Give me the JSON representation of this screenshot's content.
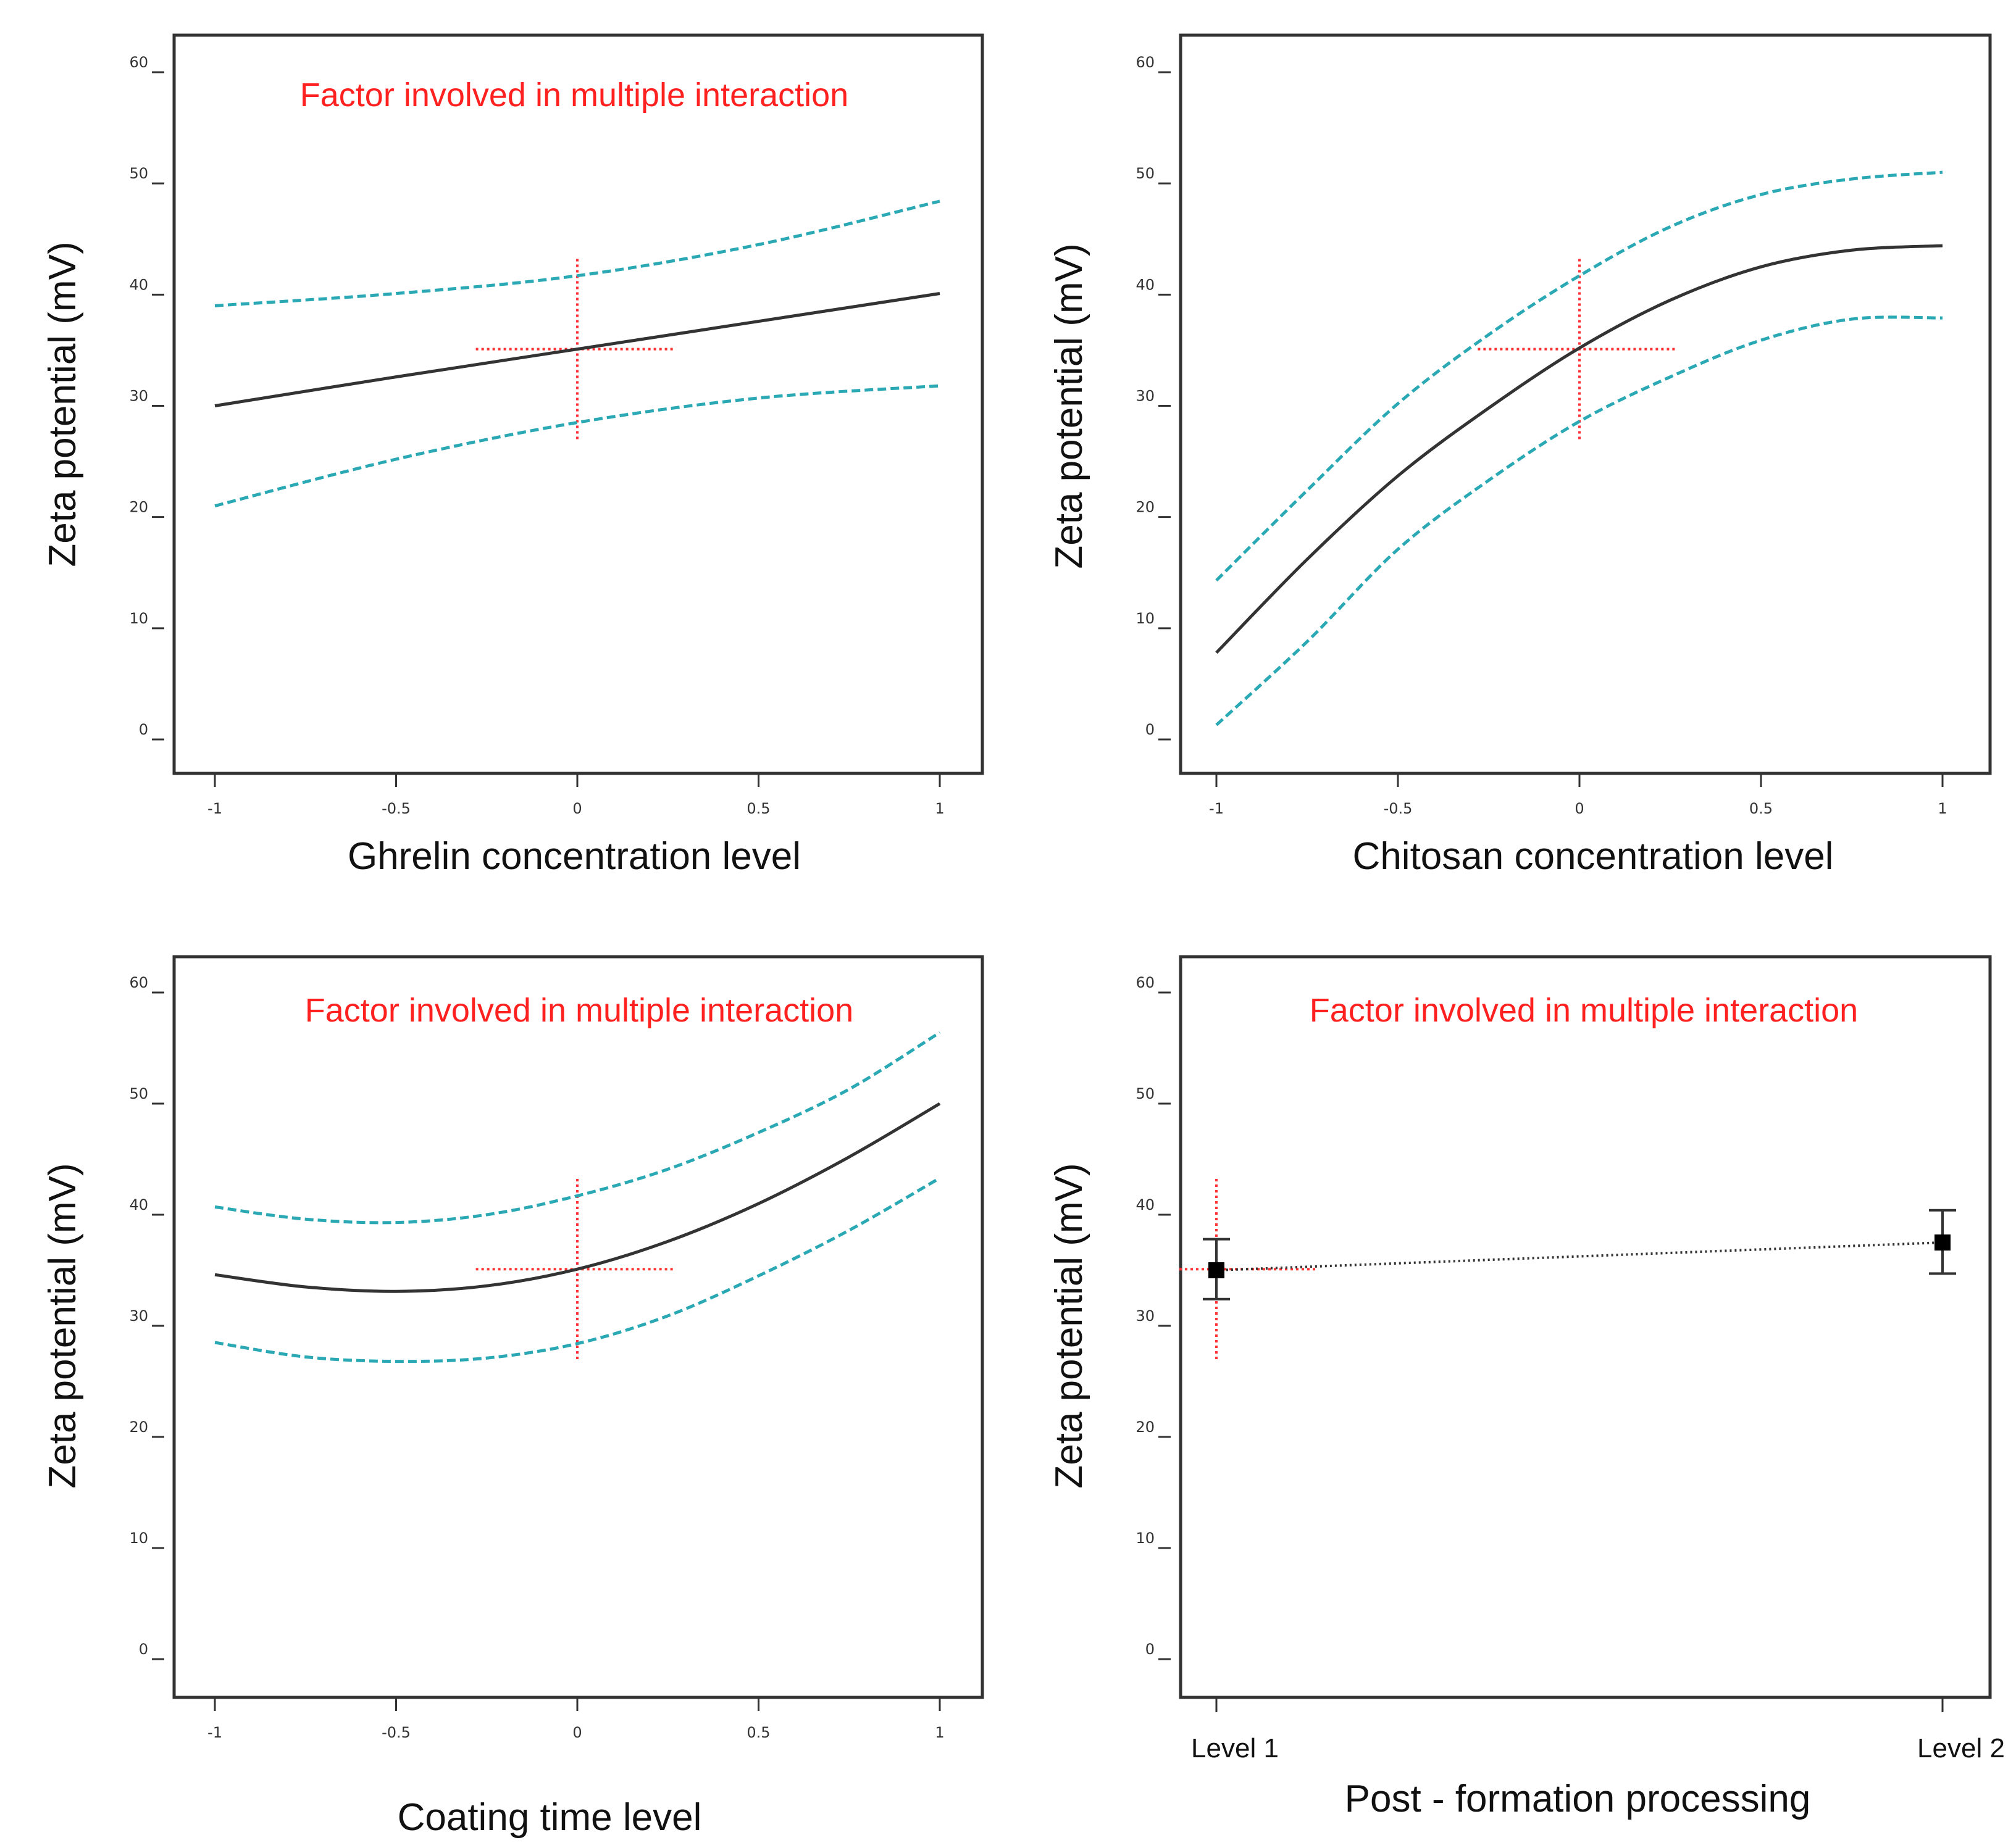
{
  "colors": {
    "fit": "#333333",
    "ci": "#2aa9b4",
    "reference": "#ff3333",
    "note": "#ff2020",
    "point": "#000000"
  },
  "chart_data": [
    {
      "type": "line",
      "xlabel": "Ghrelin concentration level",
      "ylabel": "Zeta potential (mV)",
      "annotation": "Factor involved in multiple interaction",
      "xlim": [
        -1,
        1
      ],
      "ylim": [
        0,
        60
      ],
      "x_ticks": [
        "-1",
        "-0.5",
        "0",
        "0.5",
        "1"
      ],
      "y_ticks": [
        "0",
        "10",
        "20",
        "30",
        "40",
        "50",
        "60"
      ],
      "grid": false,
      "x": [
        -1,
        -0.5,
        0,
        0.5,
        1
      ],
      "series": [
        {
          "role": "fit",
          "values": [
            30.0,
            32.6,
            35.1,
            37.6,
            40.1
          ]
        },
        {
          "role": "upper",
          "values": [
            39.0,
            40.1,
            41.7,
            44.5,
            48.4
          ]
        },
        {
          "role": "lower",
          "values": [
            21.0,
            25.2,
            28.5,
            30.7,
            31.8
          ]
        }
      ],
      "reference_cross": {
        "x": 0,
        "y": 35.1,
        "x_span": [
          -0.28,
          0.27
        ],
        "y_span": [
          27.0,
          43.3
        ]
      }
    },
    {
      "type": "line",
      "xlabel": "Chitosan concentration level",
      "ylabel": "Zeta potential (mV)",
      "annotation": "",
      "xlim": [
        -1,
        1
      ],
      "ylim": [
        0,
        60
      ],
      "x_ticks": [
        "-1",
        "-0.5",
        "0",
        "0.5",
        "1"
      ],
      "y_ticks": [
        "0",
        "10",
        "20",
        "30",
        "40",
        "50",
        "60"
      ],
      "grid": false,
      "x": [
        -1,
        -0.75,
        -0.5,
        -0.25,
        0,
        0.25,
        0.5,
        0.75,
        1
      ],
      "series": [
        {
          "role": "fit",
          "values": [
            7.8,
            16.2,
            23.7,
            29.8,
            35.2,
            39.5,
            42.5,
            44.0,
            44.4
          ]
        },
        {
          "role": "upper",
          "values": [
            14.3,
            22.4,
            30.2,
            36.4,
            41.7,
            46.1,
            49.0,
            50.4,
            51.0
          ]
        },
        {
          "role": "lower",
          "values": [
            1.3,
            8.8,
            17.1,
            23.3,
            28.6,
            32.6,
            35.9,
            37.8,
            37.9
          ]
        }
      ],
      "reference_cross": {
        "x": 0,
        "y": 35.1,
        "x_span": [
          -0.28,
          0.27
        ],
        "y_span": [
          27.0,
          43.3
        ]
      }
    },
    {
      "type": "line",
      "xlabel": "Coating time level",
      "ylabel": "Zeta potential (mV)",
      "annotation": "Factor involved in multiple interaction",
      "xlim": [
        -1,
        1
      ],
      "ylim": [
        0,
        60
      ],
      "x_ticks": [
        "-1",
        "-0.5",
        "0",
        "0.5",
        "1"
      ],
      "y_ticks": [
        "0",
        "10",
        "20",
        "30",
        "40",
        "50",
        "60"
      ],
      "grid": false,
      "x": [
        -1,
        -0.75,
        -0.5,
        -0.25,
        0,
        0.25,
        0.5,
        0.75,
        1
      ],
      "series": [
        {
          "role": "fit",
          "values": [
            34.6,
            33.5,
            33.1,
            33.6,
            35.1,
            37.6,
            41.0,
            45.2,
            50.0
          ]
        },
        {
          "role": "upper",
          "values": [
            40.7,
            39.6,
            39.3,
            40.0,
            41.7,
            44.1,
            47.4,
            51.3,
            56.4
          ]
        },
        {
          "role": "lower",
          "values": [
            28.5,
            27.2,
            26.8,
            27.1,
            28.4,
            30.9,
            34.5,
            38.6,
            43.3
          ]
        }
      ],
      "reference_cross": {
        "x": 0,
        "y": 35.1,
        "x_span": [
          -0.28,
          0.27
        ],
        "y_span": [
          27.0,
          43.3
        ]
      }
    },
    {
      "type": "scatter",
      "xlabel": "Post - formation processing",
      "ylabel": "Zeta potential (mV)",
      "annotation": "Factor involved in multiple interaction",
      "categories": [
        "Level 1",
        "Level 2"
      ],
      "ylim": [
        0,
        60
      ],
      "y_ticks": [
        "0",
        "10",
        "20",
        "30",
        "40",
        "50",
        "60"
      ],
      "grid": false,
      "values": [
        35.0,
        37.5
      ],
      "error_low": [
        32.4,
        34.7
      ],
      "error_high": [
        37.8,
        40.4
      ],
      "reference_cross": {
        "y": 35.1,
        "y_span": [
          27.0,
          43.3
        ]
      }
    }
  ]
}
